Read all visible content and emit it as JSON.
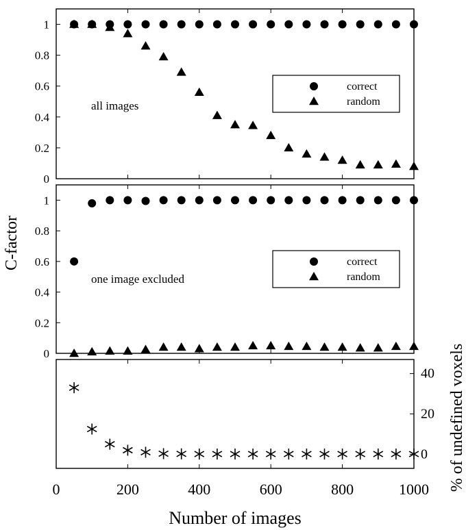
{
  "chart_data": [
    {
      "type": "scatter",
      "annotation": "all images",
      "ylim": [
        0,
        1.1
      ],
      "yticks": [
        "0",
        "0.2",
        "0.4",
        "0.6",
        "0.8",
        "1"
      ],
      "series": [
        {
          "name": "correct",
          "marker": "circle",
          "x": [
            50,
            100,
            150,
            200,
            250,
            300,
            350,
            400,
            450,
            500,
            550,
            600,
            650,
            700,
            750,
            800,
            850,
            900,
            950,
            1000
          ],
          "y": [
            1,
            1,
            1,
            1,
            1,
            1,
            1,
            1,
            1,
            1,
            1,
            1,
            1,
            1,
            1,
            1,
            1,
            1,
            1,
            1
          ]
        },
        {
          "name": "random",
          "marker": "triangle",
          "x": [
            50,
            100,
            150,
            200,
            250,
            300,
            350,
            400,
            450,
            500,
            550,
            600,
            650,
            700,
            750,
            800,
            850,
            900,
            950,
            1000
          ],
          "y": [
            1.0,
            1.0,
            0.98,
            0.94,
            0.86,
            0.79,
            0.69,
            0.56,
            0.41,
            0.35,
            0.345,
            0.28,
            0.2,
            0.16,
            0.14,
            0.12,
            0.09,
            0.09,
            0.095,
            0.08
          ]
        }
      ]
    },
    {
      "type": "scatter",
      "annotation": "one image excluded",
      "ylim": [
        0,
        1.1
      ],
      "yticks": [
        "0",
        "0.2",
        "0.4",
        "0.6",
        "0.8",
        "1"
      ],
      "series": [
        {
          "name": "correct",
          "marker": "circle",
          "x": [
            50,
            100,
            150,
            200,
            250,
            300,
            350,
            400,
            450,
            500,
            550,
            600,
            650,
            700,
            750,
            800,
            850,
            900,
            950,
            1000
          ],
          "y": [
            0.6,
            0.98,
            1,
            1,
            0.995,
            1,
            1,
            1,
            1,
            1,
            1,
            1,
            1,
            1,
            1,
            1,
            1,
            1,
            1,
            1
          ]
        },
        {
          "name": "random",
          "marker": "triangle",
          "x": [
            50,
            100,
            150,
            200,
            250,
            300,
            350,
            400,
            450,
            500,
            550,
            600,
            650,
            700,
            750,
            800,
            850,
            900,
            950,
            1000
          ],
          "y": [
            0.0,
            0.01,
            0.015,
            0.015,
            0.025,
            0.04,
            0.04,
            0.03,
            0.04,
            0.04,
            0.05,
            0.05,
            0.045,
            0.045,
            0.04,
            0.04,
            0.035,
            0.035,
            0.045,
            0.045
          ]
        }
      ]
    },
    {
      "type": "scatter",
      "ylim": [
        -7,
        47
      ],
      "yticks": [
        "0",
        "20",
        "40"
      ],
      "ylabel": "% of undefined voxels",
      "series": [
        {
          "marker": "asterisk",
          "x": [
            50,
            100,
            150,
            200,
            250,
            300,
            350,
            400,
            450,
            500,
            550,
            600,
            650,
            700,
            750,
            800,
            850,
            900,
            950,
            1000
          ],
          "y": [
            33,
            12.5,
            5,
            2,
            1,
            0.3,
            0.2,
            0.1,
            0.1,
            0.1,
            0.1,
            0.1,
            0.1,
            0.1,
            0.1,
            0.1,
            0.1,
            0.1,
            0.1,
            0.1
          ]
        }
      ]
    }
  ],
  "shared": {
    "xlim": [
      0,
      1000
    ],
    "xticks": [
      "0",
      "200",
      "400",
      "600",
      "800",
      "1000"
    ],
    "xlabel": "Number of images",
    "ylabel_left": "C-factor"
  }
}
